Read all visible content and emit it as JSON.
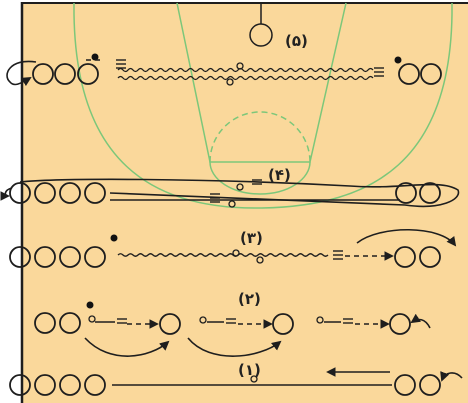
{
  "colors": {
    "court": "#fad89b",
    "court_lines": "#7cc77a",
    "ink": "#1e1e1e",
    "ball": "#111111"
  },
  "labels": {
    "drill_5": "(۵)",
    "drill_4": "(۴)",
    "drill_3": "(۳)",
    "drill_2": "(۲)",
    "drill_1": "(۱)"
  },
  "icons": {
    "player": "circle-outline",
    "ball": "filled-dot",
    "pass": "dashed-arrow",
    "dribble": "wavy-line",
    "movement": "curved-arrow"
  }
}
